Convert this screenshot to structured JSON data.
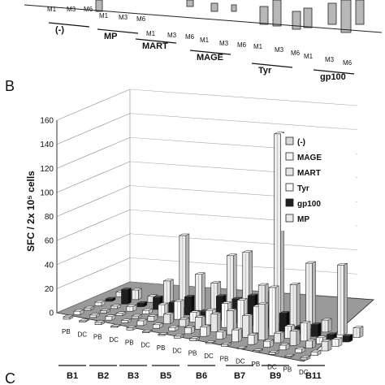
{
  "top_panel": {
    "conditions": [
      "M1",
      "M3",
      "M6"
    ],
    "groups": [
      "(-)",
      "MP",
      "MART",
      "MAGE",
      "Tyr",
      "gp100"
    ]
  },
  "panel_b": {
    "letter": "B"
  },
  "panel_c": {
    "letter": "C"
  },
  "chart_data": {
    "type": "bar",
    "ylabel": "SFC / 2x 10⁵ cells",
    "ylim": [
      0,
      160
    ],
    "yticks": [
      0,
      20,
      40,
      60,
      80,
      100,
      120,
      140,
      160
    ],
    "samples": [
      "B1",
      "B2",
      "B3",
      "B5",
      "B6",
      "B7",
      "B9",
      "B11"
    ],
    "sources": [
      "PB",
      "DC"
    ],
    "categories": [
      "B1 PB",
      "B1 DC",
      "B2 PB",
      "B2 DC",
      "B3 PB",
      "B3 DC",
      "B5 PB",
      "B5 DC",
      "B6 PB",
      "B6 DC",
      "B7 PB",
      "B7 DC",
      "B9 PB",
      "B9 DC",
      "B11 PB",
      "B11 DC"
    ],
    "series": [
      {
        "name": "(-)",
        "values": [
          2,
          1,
          2,
          1,
          2,
          1,
          1,
          2,
          2,
          1,
          2,
          1,
          1,
          2,
          1,
          2
        ]
      },
      {
        "name": "MAGE",
        "values": [
          3,
          2,
          3,
          2,
          4,
          3,
          3,
          5,
          8,
          6,
          10,
          8,
          5,
          4,
          3,
          3
        ]
      },
      {
        "name": "MART",
        "values": [
          2,
          2,
          2,
          2,
          4,
          8,
          6,
          10,
          15,
          20,
          18,
          30,
          8,
          12,
          6,
          8
        ]
      },
      {
        "name": "Tyr",
        "values": [
          3,
          2,
          4,
          3,
          10,
          15,
          8,
          12,
          20,
          25,
          22,
          40,
          10,
          15,
          5,
          6
        ]
      },
      {
        "name": "gp100",
        "values": [
          2,
          12,
          3,
          10,
          8,
          15,
          5,
          20,
          20,
          25,
          18,
          15,
          6,
          10,
          4,
          5
        ]
      },
      {
        "name": "MP",
        "values": [
          4,
          8,
          5,
          20,
          60,
          30,
          25,
          50,
          55,
          30,
          158,
          35,
          55,
          10,
          58,
          8
        ]
      }
    ],
    "legend_position": "right"
  }
}
